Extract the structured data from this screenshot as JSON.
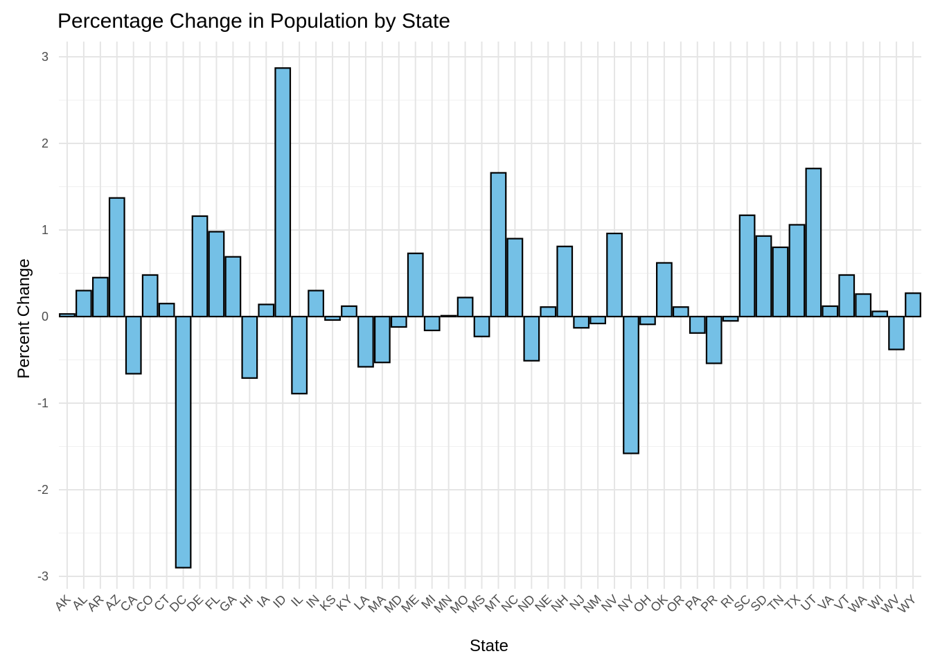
{
  "chart_data": {
    "type": "bar",
    "title": "Percentage Change in Population by State",
    "xlabel": "State",
    "ylabel": "Percent Change",
    "ylim": [
      -3.2,
      3.1
    ],
    "yticks": [
      -3,
      -2,
      -1,
      0,
      1,
      2,
      3
    ],
    "grid": true,
    "legend": "none",
    "bar_color": "#74c0e6",
    "categories": [
      "AK",
      "AL",
      "AR",
      "AZ",
      "CA",
      "CO",
      "CT",
      "DC",
      "DE",
      "FL",
      "GA",
      "HI",
      "IA",
      "ID",
      "IL",
      "IN",
      "KS",
      "KY",
      "LA",
      "MA",
      "MD",
      "ME",
      "MI",
      "MN",
      "MO",
      "MS",
      "MT",
      "NC",
      "ND",
      "NE",
      "NH",
      "NJ",
      "NM",
      "NV",
      "NY",
      "OH",
      "OK",
      "OR",
      "PA",
      "PR",
      "RI",
      "SC",
      "SD",
      "TN",
      "TX",
      "UT",
      "VA",
      "VT",
      "WA",
      "WI",
      "WV",
      "WY"
    ],
    "values": [
      0.03,
      0.3,
      0.45,
      1.37,
      -0.66,
      0.48,
      0.15,
      -2.9,
      1.16,
      0.98,
      0.69,
      -0.71,
      0.14,
      2.87,
      -0.89,
      0.3,
      -0.04,
      0.12,
      -0.58,
      -0.53,
      -0.12,
      0.73,
      -0.16,
      0.01,
      0.22,
      -0.23,
      1.66,
      0.9,
      -0.51,
      0.11,
      0.81,
      -0.13,
      -0.08,
      0.96,
      -1.58,
      -0.09,
      0.62,
      0.11,
      -0.19,
      -0.54,
      -0.05,
      1.17,
      0.93,
      0.8,
      1.06,
      1.71,
      0.12,
      0.48,
      0.26,
      0.06,
      -0.38,
      0.27
    ]
  }
}
